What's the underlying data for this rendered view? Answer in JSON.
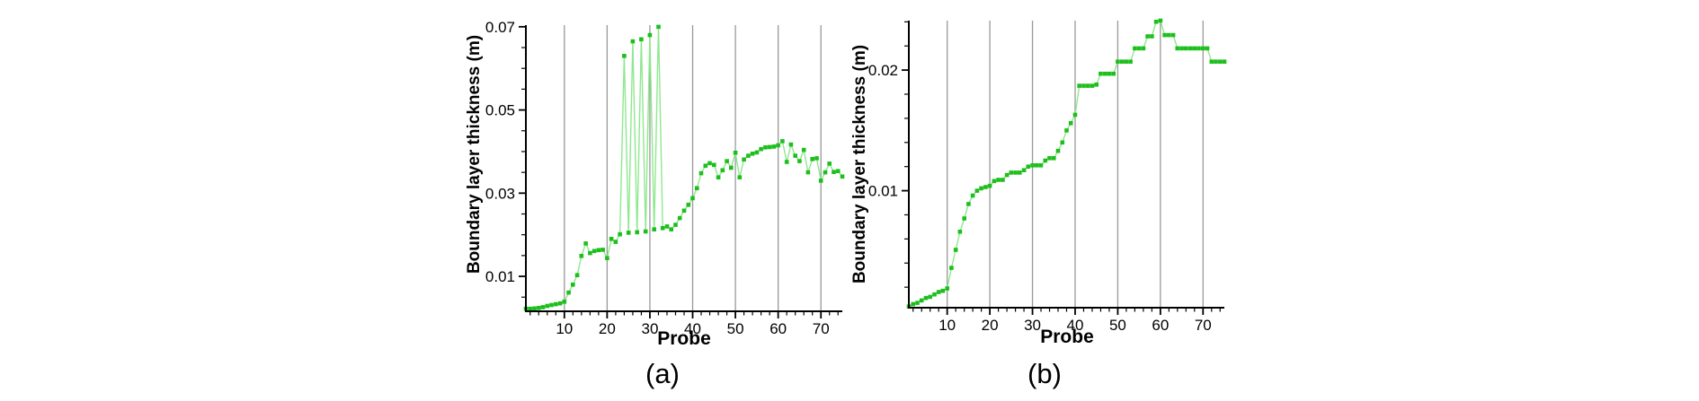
{
  "figure": {
    "background_color": "#ffffff",
    "panel_count": 2
  },
  "chart_data": [
    {
      "id": "a",
      "type": "line",
      "caption": "(a)",
      "xlabel": "Probe",
      "ylabel": "Boundary layer thickness (m)",
      "legend": "none",
      "grid": "vertical-major-x-only",
      "marker": "square",
      "line_color": "#8fe88f",
      "marker_color": "#1dbf1d",
      "grid_color": "#999999",
      "axis_color": "#000000",
      "xlim": [
        1,
        75
      ],
      "ylim": [
        0.0016,
        0.0704
      ],
      "x_major_ticks": [
        10,
        20,
        30,
        40,
        50,
        60,
        70
      ],
      "x_tick_labels": [
        "10",
        "20",
        "30",
        "40",
        "50",
        "60",
        "70"
      ],
      "x_minor_step": 2,
      "y_major_ticks": [
        0.01,
        0.03,
        0.05,
        0.07
      ],
      "y_tick_labels": [
        "0.01",
        "0.03",
        "0.05",
        "0.07"
      ],
      "y_minor_step": 0.005,
      "x": [
        1,
        2,
        3,
        4,
        5,
        6,
        7,
        8,
        9,
        10,
        11,
        12,
        13,
        14,
        15,
        16,
        17,
        18,
        19,
        20,
        21,
        22,
        23,
        24,
        25,
        26,
        27,
        28,
        29,
        30,
        31,
        32,
        33,
        34,
        35,
        36,
        37,
        38,
        39,
        40,
        41,
        42,
        43,
        44,
        45,
        46,
        47,
        48,
        49,
        50,
        51,
        52,
        53,
        54,
        55,
        56,
        57,
        58,
        59,
        60,
        61,
        62,
        63,
        64,
        65,
        66,
        67,
        68,
        69,
        70,
        71,
        72,
        73,
        74,
        75
      ],
      "y": [
        0.0022,
        0.0022,
        0.0023,
        0.0024,
        0.0026,
        0.0029,
        0.0031,
        0.0033,
        0.0035,
        0.0039,
        0.0061,
        0.008,
        0.0103,
        0.0149,
        0.0179,
        0.0156,
        0.0161,
        0.0163,
        0.0164,
        0.0144,
        0.019,
        0.0183,
        0.0201,
        0.063,
        0.0205,
        0.0665,
        0.0206,
        0.067,
        0.0208,
        0.068,
        0.0213,
        0.07,
        0.0216,
        0.022,
        0.0213,
        0.0224,
        0.024,
        0.0258,
        0.0272,
        0.0288,
        0.0312,
        0.0348,
        0.0366,
        0.0372,
        0.0368,
        0.0338,
        0.0355,
        0.0377,
        0.0361,
        0.0397,
        0.0338,
        0.0381,
        0.039,
        0.0395,
        0.0398,
        0.0406,
        0.041,
        0.0411,
        0.0412,
        0.0415,
        0.0425,
        0.0375,
        0.0417,
        0.039,
        0.0377,
        0.0404,
        0.035,
        0.0382,
        0.0384,
        0.033,
        0.035,
        0.0371,
        0.0351,
        0.0353,
        0.034
      ]
    },
    {
      "id": "b",
      "type": "line",
      "caption": "(b)",
      "xlabel": "Probe",
      "ylabel": "Boundary layer thickness (m)",
      "legend": "none",
      "grid": "vertical-major-x-only",
      "marker": "square",
      "line_color": "#8fe88f",
      "marker_color": "#1dbf1d",
      "grid_color": "#999999",
      "axis_color": "#000000",
      "xlim": [
        1,
        75
      ],
      "ylim": [
        0.0003,
        0.0241
      ],
      "x_major_ticks": [
        10,
        20,
        30,
        40,
        50,
        60,
        70
      ],
      "x_tick_labels": [
        "10",
        "20",
        "30",
        "40",
        "50",
        "60",
        "70"
      ],
      "x_minor_step": 2,
      "y_major_ticks": [
        0.01,
        0.02
      ],
      "y_tick_labels": [
        "0.01",
        "0.02"
      ],
      "y_minor_step": 0.002,
      "x": [
        1,
        2,
        3,
        4,
        5,
        6,
        7,
        8,
        9,
        10,
        11,
        12,
        13,
        14,
        15,
        16,
        17,
        18,
        19,
        20,
        21,
        22,
        23,
        24,
        25,
        26,
        27,
        28,
        29,
        30,
        31,
        32,
        33,
        34,
        35,
        36,
        37,
        38,
        39,
        40,
        41,
        42,
        43,
        44,
        45,
        46,
        47,
        48,
        49,
        50,
        51,
        52,
        53,
        54,
        55,
        56,
        57,
        58,
        59,
        60,
        61,
        62,
        63,
        64,
        65,
        66,
        67,
        68,
        69,
        70,
        71,
        72,
        73,
        74,
        75
      ],
      "y": [
        0.0004,
        0.0006,
        0.0007,
        0.0009,
        0.0011,
        0.0012,
        0.0014,
        0.0016,
        0.0017,
        0.0019,
        0.0036,
        0.0051,
        0.0066,
        0.0077,
        0.0089,
        0.0096,
        0.01,
        0.0102,
        0.0103,
        0.0104,
        0.0108,
        0.0109,
        0.0109,
        0.0113,
        0.0115,
        0.0115,
        0.0115,
        0.0117,
        0.012,
        0.0121,
        0.0121,
        0.0121,
        0.0125,
        0.0127,
        0.0127,
        0.0133,
        0.014,
        0.015,
        0.0156,
        0.0163,
        0.0187,
        0.0187,
        0.0187,
        0.0187,
        0.0188,
        0.0197,
        0.0197,
        0.0197,
        0.0197,
        0.0207,
        0.0207,
        0.0207,
        0.0207,
        0.0218,
        0.0218,
        0.0218,
        0.0228,
        0.0228,
        0.024,
        0.0241,
        0.0229,
        0.0229,
        0.0229,
        0.0218,
        0.0218,
        0.0218,
        0.0218,
        0.0218,
        0.0218,
        0.0218,
        0.0218,
        0.0207,
        0.0207,
        0.0207,
        0.0207
      ]
    }
  ]
}
